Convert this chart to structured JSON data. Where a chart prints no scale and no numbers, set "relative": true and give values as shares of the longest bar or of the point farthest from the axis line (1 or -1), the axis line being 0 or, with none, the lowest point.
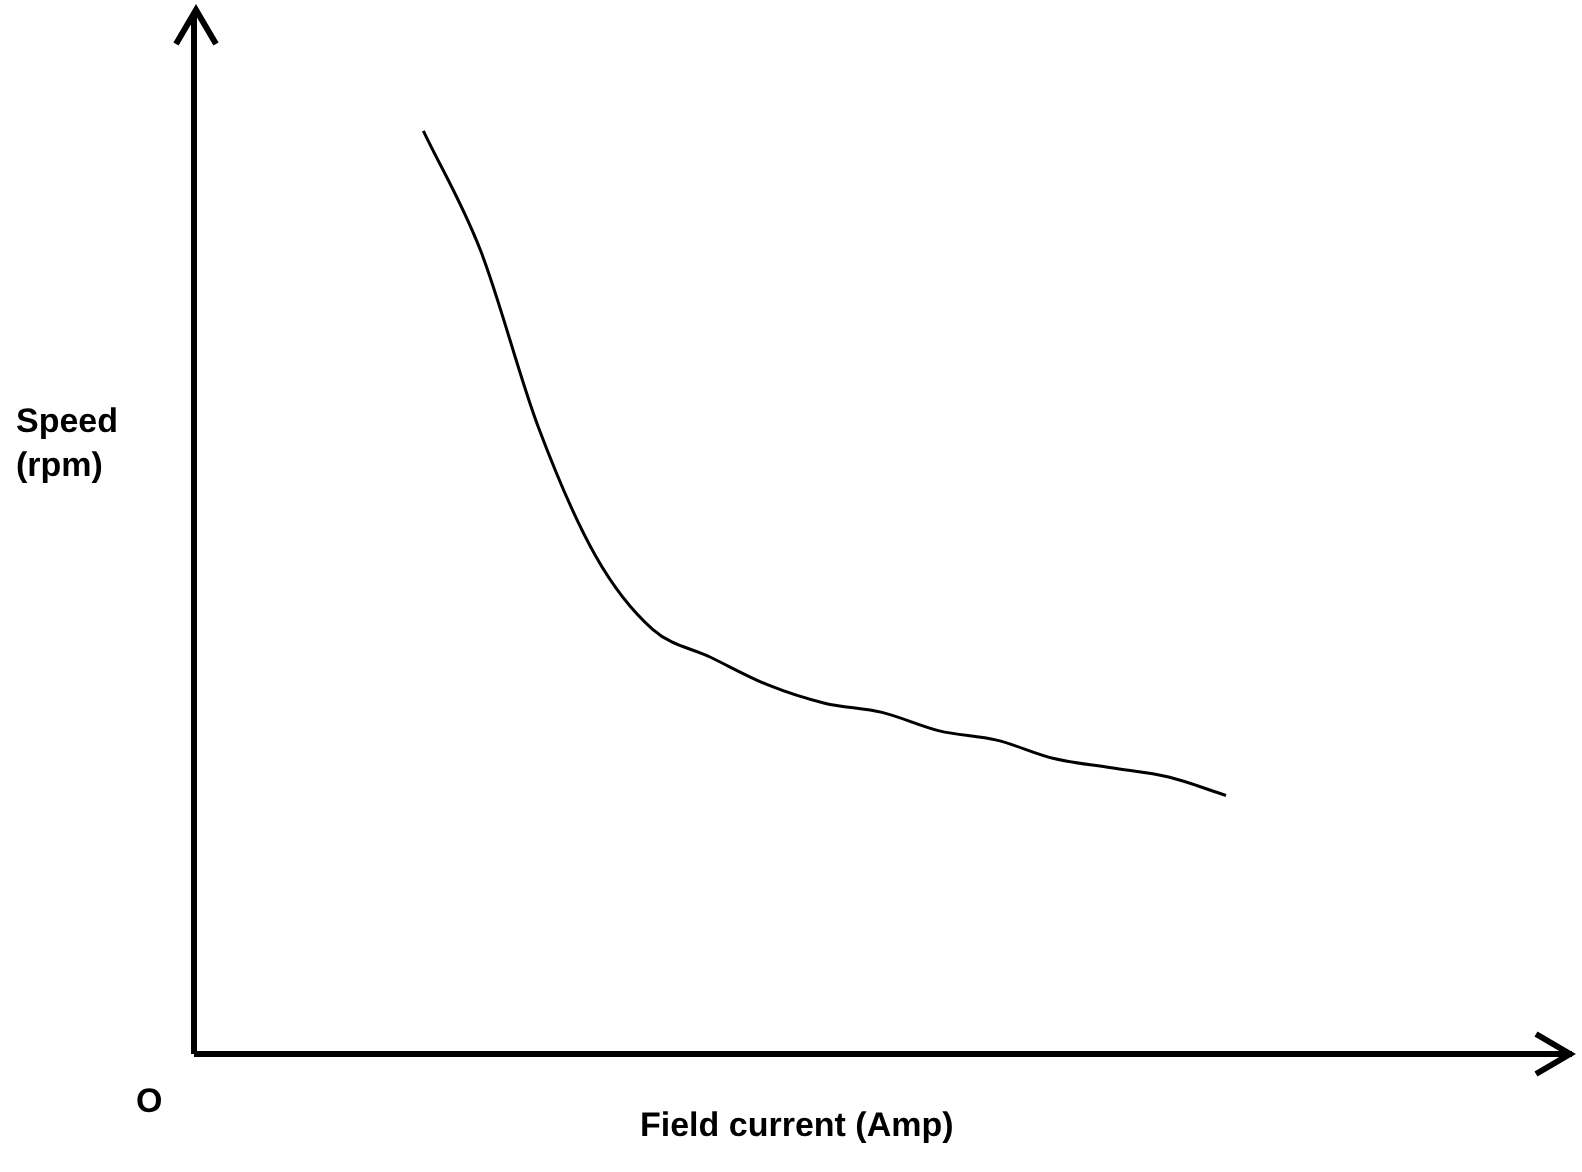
{
  "chart_data": {
    "type": "line",
    "relative": true,
    "xlabel": "Field current (Amp)",
    "ylabel": "Speed\n(rpm)",
    "annotations": [
      "O"
    ],
    "categories": [
      null,
      null,
      null,
      null,
      null,
      null,
      null,
      null,
      null,
      null,
      null,
      null,
      null,
      null,
      null,
      null,
      null,
      null,
      null,
      null,
      null,
      null,
      null,
      null,
      null
    ],
    "series": [
      {
        "color": "#000000",
        "values": [
          null,
          null,
          null,
          null,
          1.0,
          0.87,
          0.68,
          0.54,
          0.46,
          0.43,
          0.4,
          0.38,
          0.37,
          0.35,
          0.34,
          0.32,
          0.31,
          0.3,
          0.28,
          null,
          null,
          null,
          null,
          null,
          null
        ]
      }
    ],
    "grid": false,
    "legend": false,
    "marker": "none",
    "line_style": "solid"
  }
}
